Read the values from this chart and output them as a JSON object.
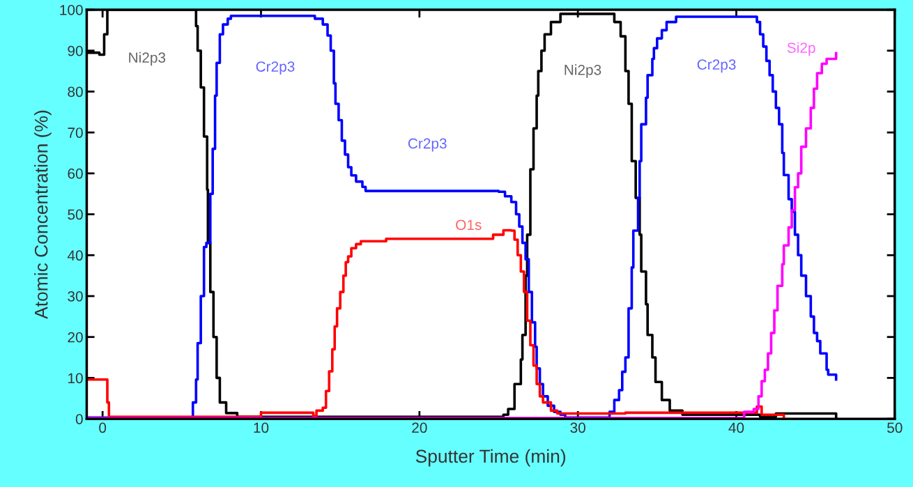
{
  "chart_data": {
    "type": "step",
    "xlabel": "Sputter Time (min)",
    "ylabel": "Atomic Concentration (%)",
    "xlim": [
      -1,
      50
    ],
    "ylim": [
      0,
      100
    ],
    "xticks": [
      0,
      10,
      20,
      30,
      40,
      50
    ],
    "yticks": [
      0,
      10,
      20,
      30,
      40,
      50,
      60,
      70,
      80,
      90,
      100
    ],
    "grid": false,
    "series": [
      {
        "name": "Ni2p3",
        "color": "#000000",
        "x": [
          -0.9,
          -0.2,
          0.1,
          0.3,
          5.3,
          5.9,
          6.0,
          6.2,
          6.4,
          6.6,
          6.65,
          6.8,
          7.0,
          7.2,
          7.4,
          7.8,
          8.5,
          25.3,
          25.6,
          26.0,
          26.4,
          26.5,
          26.7,
          26.8,
          27.0,
          27.2,
          27.4,
          27.5,
          27.7,
          27.9,
          28.3,
          28.9,
          32.0,
          32.3,
          32.7,
          33.0,
          33.2,
          33.4,
          33.65,
          33.9,
          34.0,
          34.3,
          34.4,
          34.7,
          34.9,
          35.3,
          35.8,
          36.6,
          41.5,
          42.5,
          45.0,
          46.3
        ],
        "values": [
          89.5,
          89,
          94,
          100,
          100,
          96,
          90,
          81,
          69,
          56,
          43,
          31,
          20,
          10,
          4,
          1.4,
          0.5,
          1,
          2.4,
          8.5,
          14.5,
          20.5,
          35,
          45,
          61,
          71,
          79,
          85,
          90,
          94,
          97,
          99,
          99,
          97,
          93.5,
          85,
          77,
          63,
          54,
          45,
          36,
          28,
          20.5,
          15,
          9,
          4.6,
          2,
          1,
          0.5,
          1.3,
          1.3,
          0.5
        ]
      },
      {
        "name": "Cr2p3",
        "color": "#0000ff",
        "x": [
          -0.9,
          5.5,
          5.7,
          5.9,
          6.0,
          6.2,
          6.4,
          6.55,
          6.8,
          6.95,
          7.1,
          7.2,
          7.4,
          7.6,
          7.9,
          8.1,
          13.0,
          13.4,
          13.9,
          14.2,
          14.4,
          14.6,
          14.7,
          14.9,
          15.1,
          15.3,
          15.5,
          15.7,
          16.0,
          16.4,
          16.6,
          25.0,
          25.4,
          25.8,
          26.1,
          26.3,
          26.5,
          26.7,
          26.9,
          27.1,
          27.3,
          27.4,
          27.6,
          27.8,
          28.1,
          28.5,
          28.9,
          29.2,
          31.7,
          32.0,
          32.3,
          32.6,
          32.8,
          33.0,
          33.2,
          33.4,
          33.5,
          33.8,
          33.9,
          34.0,
          34.3,
          34.4,
          34.7,
          34.8,
          35.0,
          35.3,
          35.6,
          36.2,
          40.7,
          41.3,
          41.5,
          41.7,
          41.9,
          42.1,
          42.3,
          42.5,
          42.7,
          42.9,
          43.0,
          43.3,
          43.5,
          43.7,
          43.9,
          44.1,
          44.4,
          44.7,
          44.9,
          45.1,
          45.3,
          45.7,
          45.8,
          46.3
        ],
        "values": [
          0.3,
          0.3,
          4,
          9.6,
          18.5,
          30,
          42,
          43,
          55,
          66,
          79,
          87,
          94,
          96.4,
          97.8,
          98.5,
          98.5,
          97.8,
          96.4,
          93.7,
          90,
          82,
          77,
          73,
          68,
          64.6,
          61.5,
          59.5,
          58,
          56.7,
          55.7,
          55.5,
          54.4,
          53,
          50,
          47,
          43,
          39,
          31,
          23.6,
          17.6,
          12.3,
          8.5,
          5.5,
          3.2,
          1.7,
          1,
          0.3,
          0.3,
          1.7,
          4.6,
          7,
          11.5,
          15,
          27,
          37,
          46,
          54,
          63,
          72,
          78.5,
          84,
          88,
          90.6,
          93,
          95,
          97,
          98.3,
          98.3,
          97,
          94,
          91,
          87.5,
          84,
          80,
          76,
          72,
          65,
          59.6,
          53.7,
          50.6,
          45,
          40,
          35,
          30,
          25,
          21,
          19,
          16,
          12,
          10.8,
          9.6
        ]
      },
      {
        "name": "O1s",
        "color": "#ff0000",
        "x": [
          -0.9,
          -0.5,
          0.3,
          0.4,
          10.0,
          11.0,
          13.3,
          13.5,
          13.9,
          14.1,
          14.3,
          14.5,
          14.65,
          14.8,
          15.0,
          15.2,
          15.35,
          15.5,
          15.7,
          16.0,
          16.3,
          17.9,
          24.65,
          25.3,
          25.8,
          26.0,
          26.2,
          26.4,
          26.6,
          26.8,
          27.0,
          27.2,
          27.4,
          27.6,
          27.8,
          28.3,
          28.7,
          33.0,
          41.0,
          41.3,
          41.6,
          42.5,
          43.0
        ],
        "values": [
          9.6,
          9.6,
          4,
          0.5,
          1.5,
          1.5,
          0.7,
          2,
          2.7,
          6.8,
          11.6,
          17,
          22.6,
          27,
          31,
          35,
          38.3,
          39.7,
          41.7,
          42.7,
          43.4,
          44,
          45,
          46.1,
          46,
          43.8,
          40,
          36,
          31,
          24,
          18,
          13,
          8.5,
          5.5,
          4,
          2,
          1.3,
          1.5,
          1.5,
          3,
          1,
          1,
          0.3
        ]
      },
      {
        "name": "Si2p",
        "color": "#ff00ff",
        "x": [
          -0.9,
          40.0,
          40.5,
          41.1,
          41.4,
          41.6,
          41.8,
          42.0,
          42.2,
          42.4,
          42.6,
          42.9,
          43.0,
          43.3,
          43.5,
          43.7,
          43.9,
          44.1,
          44.4,
          44.7,
          44.9,
          45.1,
          45.4,
          45.7,
          46.3
        ],
        "values": [
          0.2,
          0.2,
          1.7,
          2.4,
          5.5,
          9.2,
          12,
          16,
          21,
          26.5,
          32.5,
          37.8,
          42.4,
          46.8,
          51,
          56.6,
          60,
          66.5,
          71,
          76,
          80.7,
          84.5,
          86.8,
          88,
          89.4
        ]
      }
    ],
    "legend": false
  }
}
